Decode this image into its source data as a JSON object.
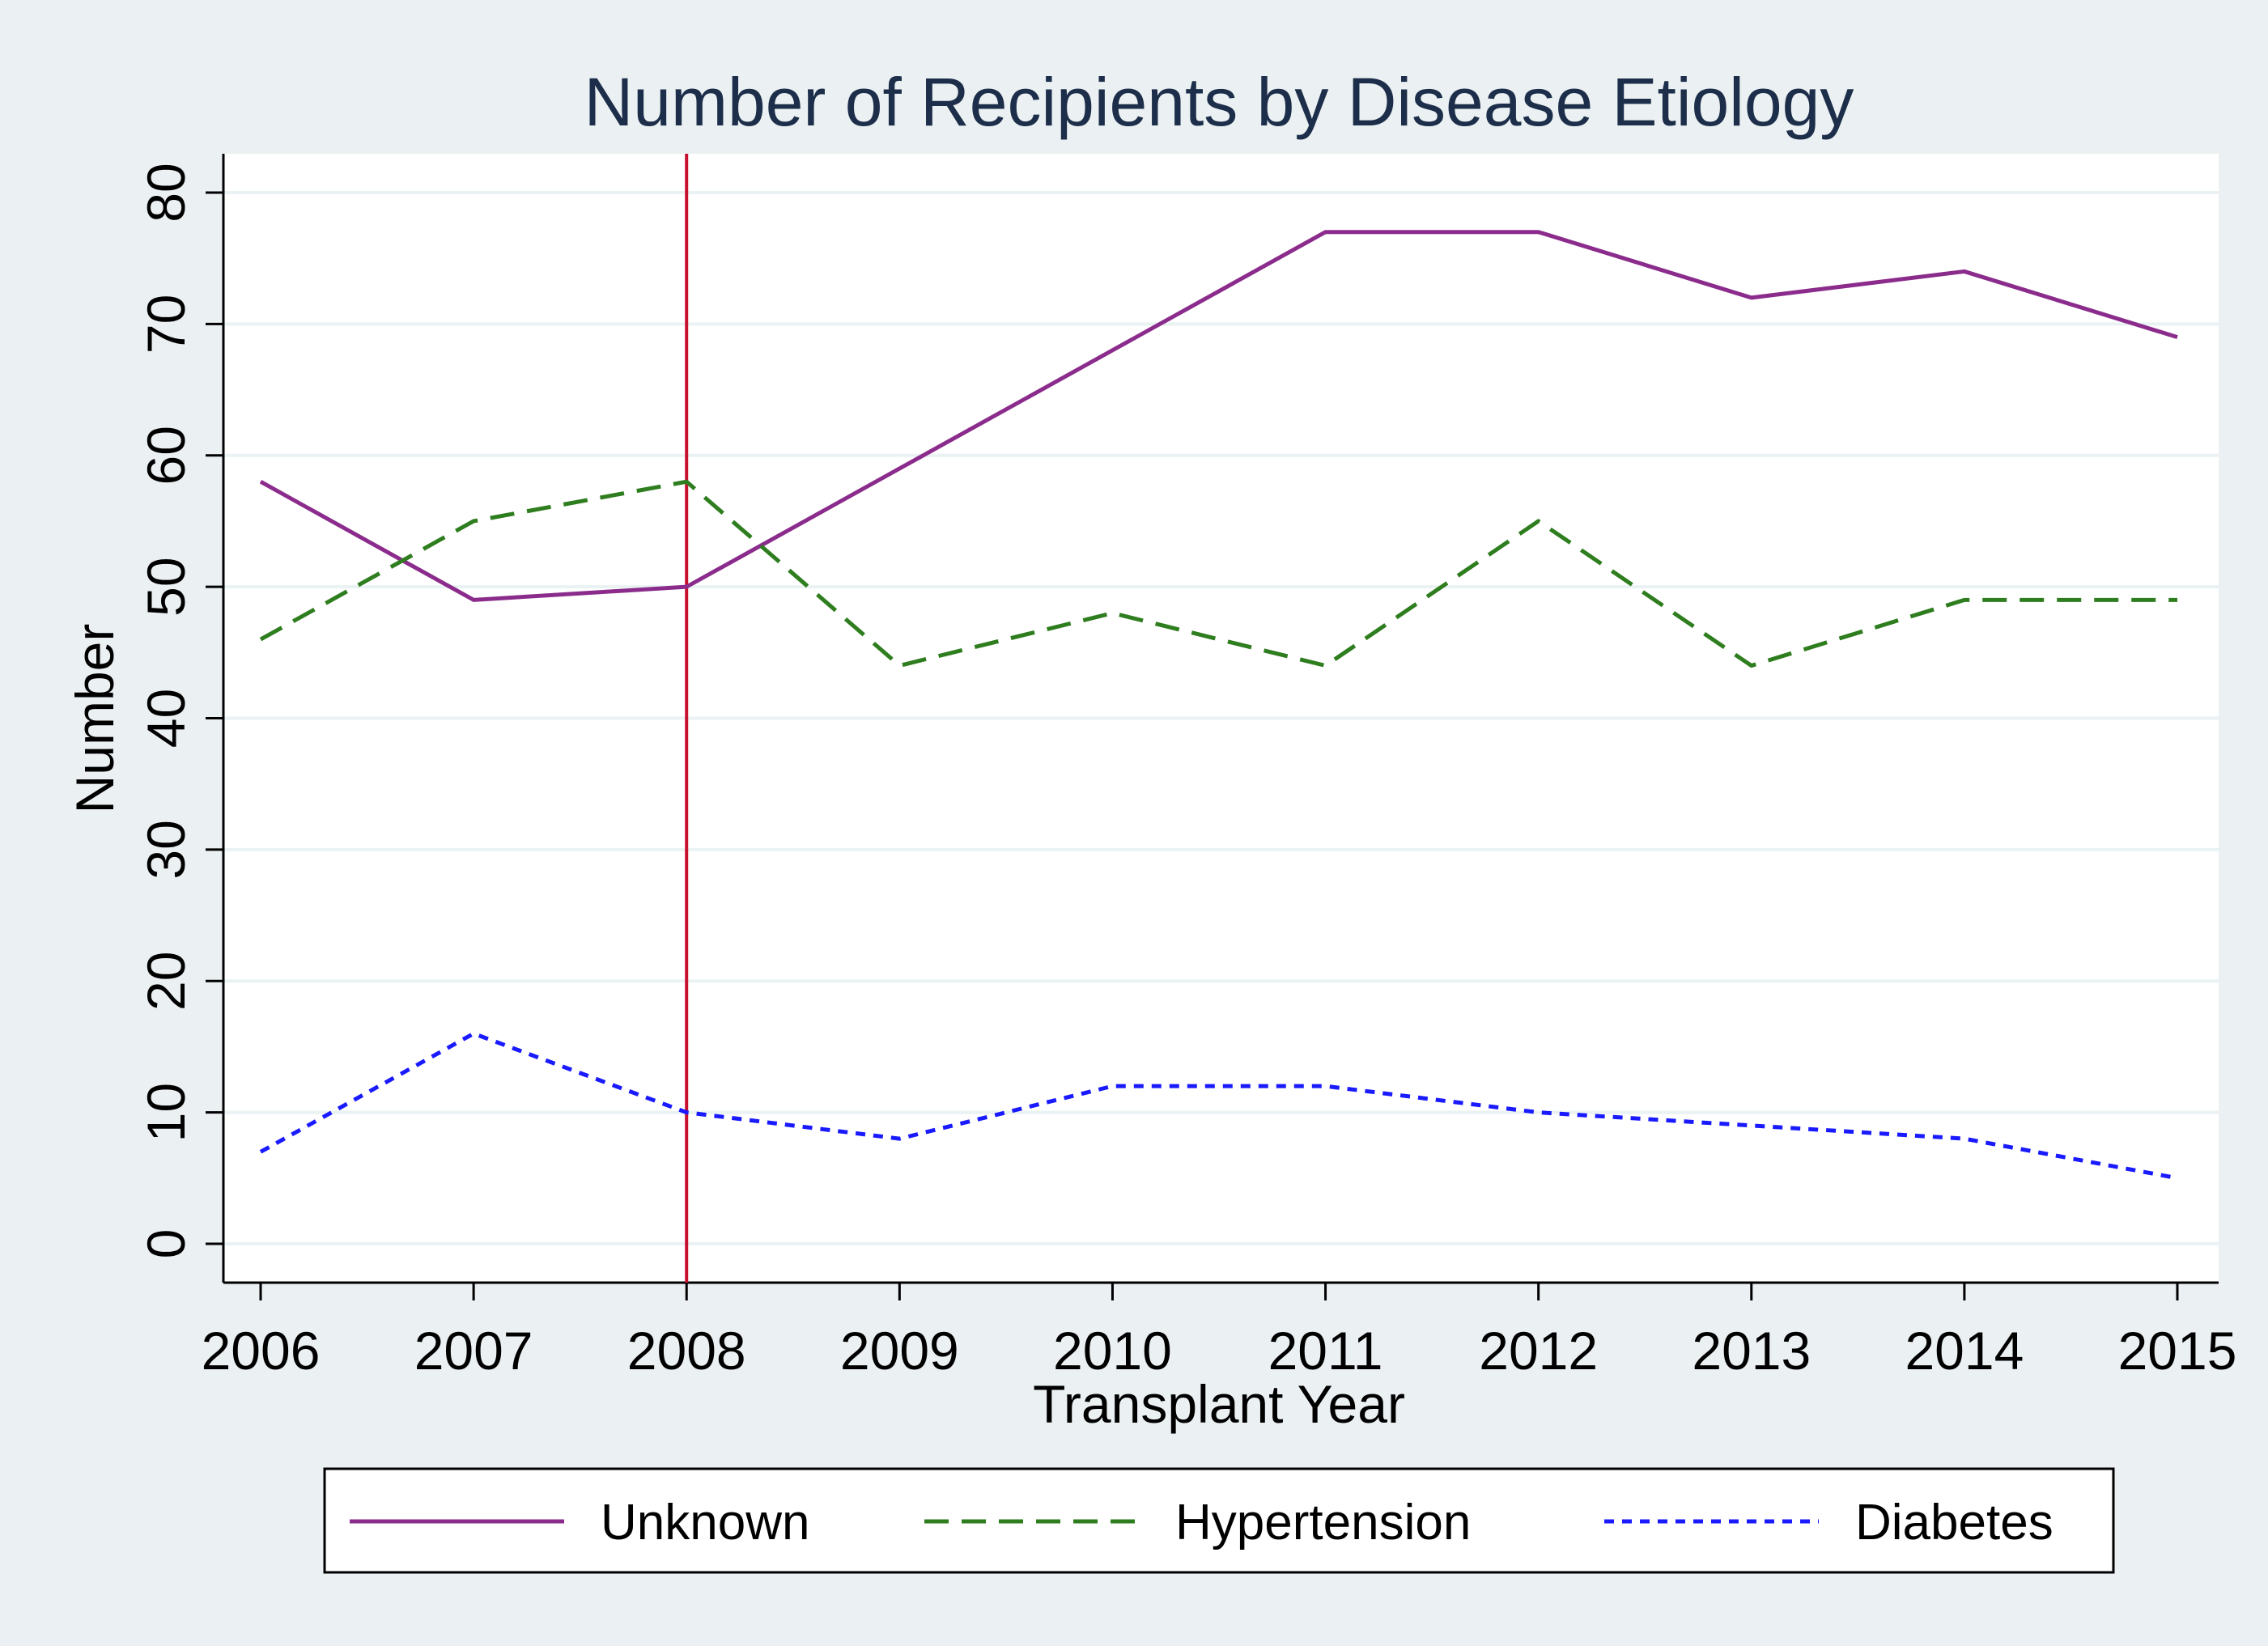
{
  "chart_data": {
    "type": "line",
    "title": "Number of Recipients by Disease Etiology",
    "xlabel": "Transplant Year",
    "ylabel": "Number",
    "x": [
      2006,
      2007,
      2008,
      2009,
      2010,
      2011,
      2012,
      2013,
      2014,
      2015
    ],
    "xlim": [
      2006,
      2015
    ],
    "ylim": [
      0,
      80
    ],
    "yticks": [
      0,
      10,
      20,
      30,
      40,
      50,
      60,
      70,
      80
    ],
    "grid": true,
    "reference_line_x": 2008,
    "legend_position": "bottom",
    "series": [
      {
        "name": "Unknown",
        "style": "solid",
        "color": "#8b2c8c",
        "values": [
          58,
          49,
          50,
          59,
          68,
          77,
          77,
          72,
          74,
          69
        ]
      },
      {
        "name": "Hypertension",
        "style": "dashed",
        "color": "#2e7d1e",
        "values": [
          46,
          55,
          58,
          44,
          48,
          44,
          55,
          44,
          49,
          49
        ]
      },
      {
        "name": "Diabetes",
        "style": "dotted",
        "color": "#1a1aff",
        "values": [
          7,
          16,
          10,
          8,
          12,
          12,
          10,
          9,
          8,
          5
        ]
      }
    ],
    "reference_line_color": "#c8102e"
  }
}
